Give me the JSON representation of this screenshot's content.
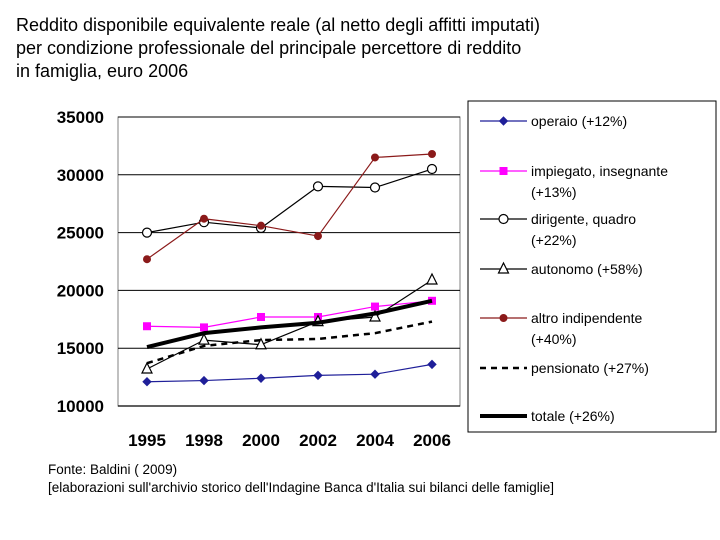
{
  "title_lines": [
    "Reddito disponibile equivalente reale (al netto degli affitti imputati)",
    "per condizione professionale del principale percettore di reddito",
    "in famiglia, euro 2006"
  ],
  "source_lines": [
    "Fonte: Baldini ( 2009)",
    "[elaborazioni sull'archivio storico dell'Indagine Banca d'Italia sui bilanci delle famiglie]"
  ],
  "chart_data": {
    "type": "line",
    "title": "Reddito disponibile equivalente reale (al netto degli affitti imputati) per condizione professionale del principale percettore di reddito in famiglia, euro 2006",
    "xlabel": "",
    "ylabel": "",
    "x": [
      "1995",
      "1998",
      "2000",
      "2002",
      "2004",
      "2006"
    ],
    "ylim": [
      10000,
      35000
    ],
    "yticks": [
      "35000",
      "30000",
      "25000",
      "20000",
      "15000",
      "10000"
    ],
    "grid": "horizontal",
    "legend_position": "right",
    "series": [
      {
        "name": [
          "operaio (+12%)"
        ],
        "values": [
          12100,
          12200,
          12400,
          12650,
          12750,
          13600
        ],
        "color": "#1f1f99",
        "marker": "diamond",
        "dash": "solid",
        "width": 1.2
      },
      {
        "name": [
          "impiegato, insegnante",
          "(+13%)"
        ],
        "values": [
          16900,
          16800,
          17700,
          17700,
          18600,
          19100
        ],
        "color": "#ff00ff",
        "marker": "square",
        "dash": "solid",
        "width": 1.2
      },
      {
        "name": [
          "dirigente, quadro",
          "(+22%)"
        ],
        "values": [
          25000,
          25900,
          25400,
          29000,
          28900,
          30500
        ],
        "color": "#000000",
        "marker": "circle-open",
        "dash": "solid",
        "width": 1.2
      },
      {
        "name": [
          "autonomo (+58%)"
        ],
        "values": [
          13200,
          15700,
          15300,
          17300,
          17700,
          20900
        ],
        "color": "#000000",
        "marker": "triangle-open",
        "dash": "solid",
        "width": 1.2
      },
      {
        "name": [
          "altro indipendente",
          "(+40%)"
        ],
        "values": [
          22700,
          26200,
          25600,
          24700,
          31500,
          31800
        ],
        "color": "#8b1a1a",
        "marker": "circle-filled",
        "dash": "solid",
        "width": 1.2
      },
      {
        "name": [
          "pensionato (+27%)"
        ],
        "values": [
          13700,
          15200,
          15700,
          15800,
          16300,
          17300
        ],
        "color": "#000000",
        "marker": "none",
        "dash": "dotted",
        "width": 2.5
      },
      {
        "name": [
          "totale (+26%)"
        ],
        "values": [
          15100,
          16300,
          16800,
          17200,
          18000,
          19100
        ],
        "color": "#000000",
        "marker": "none",
        "dash": "solid",
        "width": 4
      }
    ]
  }
}
